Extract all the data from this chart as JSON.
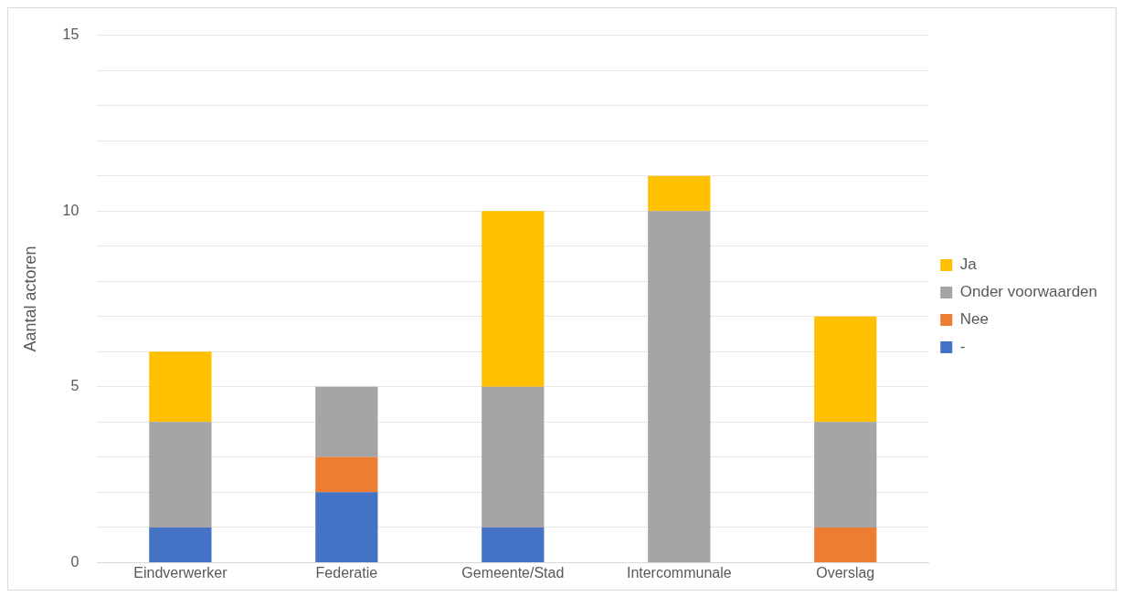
{
  "chart_data": {
    "type": "bar",
    "stacked": true,
    "ylabel": "Aantal actoren",
    "categories": [
      "Eindverwerker",
      "Federatie",
      "Gemeente/Stad",
      "Intercommunale",
      "Overslag"
    ],
    "series": [
      {
        "name": "-",
        "color": "#4472c4",
        "values": [
          1,
          2,
          1,
          0,
          0
        ]
      },
      {
        "name": "Nee",
        "color": "#ed7d31",
        "values": [
          0,
          1,
          0,
          0,
          1
        ]
      },
      {
        "name": "Onder voorwaarden",
        "color": "#a5a5a5",
        "values": [
          3,
          2,
          4,
          10,
          3
        ]
      },
      {
        "name": "Ja",
        "color": "#ffc000",
        "values": [
          2,
          0,
          5,
          1,
          3
        ]
      }
    ],
    "ylim": [
      0,
      15
    ],
    "yticks": [
      0,
      {
        "value": 1,
        "label": null
      },
      {
        "value": 2,
        "label": null
      },
      {
        "value": 3,
        "label": null
      },
      {
        "value": 4,
        "label": null
      },
      5,
      {
        "value": 6,
        "label": null
      },
      {
        "value": 7,
        "label": null
      },
      {
        "value": 8,
        "label": null
      },
      {
        "value": 9,
        "label": null
      },
      10,
      {
        "value": 11,
        "label": null
      },
      {
        "value": 12,
        "label": null
      },
      {
        "value": 13,
        "label": null
      },
      {
        "value": 14,
        "label": null
      },
      15
    ],
    "grid": "y",
    "legend": "right"
  }
}
